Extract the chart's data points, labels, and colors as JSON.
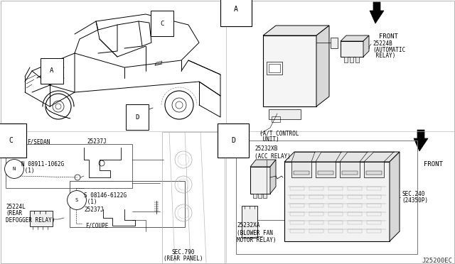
{
  "bg_color": "#ffffff",
  "line_color": "#000000",
  "gray_color": "#888888",
  "light_gray": "#cccccc",
  "watermark": "J25200EC",
  "section_A": "A",
  "section_C": "C",
  "section_D": "D",
  "front": "FRONT",
  "part_25224B_line1": "25224B",
  "part_25224B_line2": "(AUTOMATIC",
  "part_25224B_line3": " RELAY)",
  "part_AT1": "(A/T CONTROL",
  "part_AT2": " UNIT)",
  "part_25237J": "25237J",
  "part_08911_1": "N 08911-1062G",
  "part_08911_2": " (1)",
  "part_08146_1": "S 08146-6122G",
  "part_08146_2": " (1)",
  "part_25224L_1": "25224L",
  "part_25224L_2": "(REAR",
  "part_25224L_3": "DEFOGGER RELAY)",
  "part_F_SEDAN": "F/SEDAN",
  "part_F_COUPE": "F/COUPE",
  "part_SEC790_1": "SEC.790",
  "part_SEC790_2": "(REAR PANEL)",
  "part_25232XB_1": "25232XB",
  "part_25232XB_2": "(ACC RELAY)",
  "part_25232XA_1": "25232XA",
  "part_25232XA_2": "(BLOWER FAN",
  "part_25232XA_3": "MOTOR RELAY)",
  "part_SEC240_1": "SEC.240",
  "part_SEC240_2": "(24350P)",
  "font_size_small": 5.5,
  "font_size_med": 6.5,
  "font_size_label": 7
}
